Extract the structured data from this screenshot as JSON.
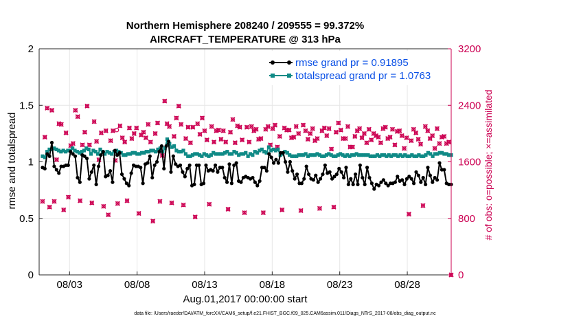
{
  "chart_data": {
    "type": "line",
    "title_line1": "Northern Hemisphere 208240 / 209555 = 99.372%",
    "title_line2": "AIRCRAFT_TEMPERATURE @ 313 hPa",
    "xlabel": "Aug.01,2017 00:00:00 start",
    "ylabel_left": "rmse and totalspread",
    "ylabel_right": "# of obs: o=possible; ×=assimilated",
    "footnote": "data file: /Users/raeder/DAI/ATM_forcXX/CAM6_setup/f.e21.FHIST_BGC.f09_025.CAM6assim.011/Diags_NTrS_2017-08/obs_diag_output.nc",
    "x_tick_labels": [
      "08/03",
      "08/08",
      "08/13",
      "08/18",
      "08/23",
      "08/28"
    ],
    "x_ticks_day": [
      3,
      8,
      13,
      18,
      23,
      28
    ],
    "xlim_day": [
      0.75,
      31.25
    ],
    "ylim_left": [
      0,
      2
    ],
    "yticks_left": [
      "0",
      "0.5",
      "1",
      "1.5",
      "2"
    ],
    "ylim_right": [
      0,
      3200
    ],
    "yticks_right": [
      "0",
      "800",
      "1600",
      "2400",
      "3200"
    ],
    "colors": {
      "rmse": "#000000",
      "spread": "#0f8a86",
      "obs": "#cc0052",
      "legend_text": "#0a50e6",
      "grid": "#e6e6e6"
    },
    "series": [
      {
        "name": "rmse grand pr = 0.91895",
        "color": "#000000",
        "values": [
          0.95,
          0.94,
          1.07,
          1.05,
          1.17,
          0.96,
          0.93,
          0.9,
          0.96,
          0.96,
          0.97,
          0.97,
          1.09,
          1.07,
          1.05,
          0.86,
          0.82,
          1.06,
          1.05,
          1.03,
          0.85,
          0.91,
          0.97,
          0.8,
          0.96,
          1.06,
          1.09,
          0.87,
          0.88,
          0.92,
          0.82,
          1.1,
          1.06,
          1.08,
          0.89,
          0.85,
          0.81,
          0.79,
          0.9,
          0.97,
          0.96,
          0.96,
          0.95,
          0.81,
          0.98,
          0.99,
          1.05,
          0.86,
          0.97,
          1.0,
          1.09,
          1.14,
          0.94,
          1.14,
          1.18,
          0.91,
          1.05,
          0.98,
          0.96,
          0.97,
          0.91,
          0.87,
          0.94,
          0.97,
          0.79,
          0.8,
          0.97,
          0.97,
          0.8,
          0.81,
          0.97,
          0.92,
          0.93,
          0.92,
          0.97,
          0.91,
          0.95,
          0.95,
          0.86,
          0.82,
          0.98,
          0.81,
          0.97,
          0.99,
          0.83,
          0.82,
          0.86,
          0.87,
          0.86,
          0.85,
          0.86,
          0.82,
          0.79,
          0.83,
          0.95,
          0.95,
          0.92,
          1.07,
          1.04,
          0.99,
          1.02,
          0.99,
          1.08,
          1.08,
          1.0,
          0.91,
          1.0,
          0.92,
          0.85,
          0.89,
          0.81,
          0.81,
          0.85,
          0.96,
          0.89,
          0.85,
          0.84,
          0.88,
          0.82,
          0.85,
          0.89,
          0.97,
          0.9,
          0.91,
          0.85,
          0.87,
          0.89,
          0.94,
          0.91,
          0.86,
          0.95,
          0.8,
          0.85,
          0.8,
          0.89,
          0.8,
          0.97,
          0.86,
          0.8,
          0.95,
          0.86,
          0.81,
          0.76,
          0.8,
          0.79,
          0.82,
          0.84,
          0.81,
          0.79,
          0.81,
          0.81,
          0.82,
          0.87,
          0.83,
          0.84,
          0.8,
          0.85,
          0.87,
          0.85,
          0.81,
          0.91,
          0.88,
          0.82,
          0.86,
          0.8,
          0.95,
          0.88,
          0.82,
          0.86,
          0.84,
          0.99,
          0.93,
          0.93,
          0.81,
          0.8,
          0.8
        ]
      },
      {
        "name": "totalspread grand pr = 1.0763",
        "color": "#0f8a86",
        "values": [
          1.05,
          1.04,
          1.09,
          1.11,
          1.11,
          1.12,
          1.11,
          1.1,
          1.09,
          1.1,
          1.09,
          1.1,
          1.1,
          1.12,
          1.1,
          1.09,
          1.08,
          1.09,
          1.1,
          1.12,
          1.11,
          1.07,
          1.1,
          1.09,
          1.07,
          1.11,
          1.09,
          1.07,
          1.09,
          1.08,
          1.07,
          1.09,
          1.1,
          1.09,
          1.08,
          1.06,
          1.06,
          1.07,
          1.07,
          1.08,
          1.08,
          1.07,
          1.07,
          1.08,
          1.08,
          1.09,
          1.09,
          1.1,
          1.1,
          1.09,
          1.11,
          1.12,
          1.09,
          1.12,
          1.2,
          1.16,
          1.13,
          1.14,
          1.1,
          1.09,
          1.09,
          1.1,
          1.07,
          1.05,
          1.05,
          1.06,
          1.07,
          1.07,
          1.06,
          1.05,
          1.07,
          1.06,
          1.05,
          1.06,
          1.08,
          1.07,
          1.07,
          1.07,
          1.07,
          1.08,
          1.09,
          1.07,
          1.07,
          1.09,
          1.08,
          1.06,
          1.07,
          1.07,
          1.08,
          1.05,
          1.07,
          1.06,
          1.09,
          1.08,
          1.1,
          1.11,
          1.09,
          1.08,
          1.13,
          1.1,
          1.11,
          1.1,
          1.11,
          1.06,
          1.07,
          1.09,
          1.08,
          1.06,
          1.05,
          1.05,
          1.05,
          1.06,
          1.06,
          1.06,
          1.07,
          1.05,
          1.06,
          1.06,
          1.06,
          1.07,
          1.06,
          1.05,
          1.05,
          1.06,
          1.07,
          1.06,
          1.05,
          1.05,
          1.06,
          1.07,
          1.06,
          1.05,
          1.06,
          1.05,
          1.06,
          1.06,
          1.07,
          1.06,
          1.06,
          1.06,
          1.06,
          1.06,
          1.05,
          1.05,
          1.05,
          1.06,
          1.05,
          1.06,
          1.06,
          1.05,
          1.06,
          1.05,
          1.06,
          1.06,
          1.05,
          1.06,
          1.05,
          1.06,
          1.05,
          1.05,
          1.06,
          1.05,
          1.05,
          1.06,
          1.05,
          1.05,
          1.06,
          1.08,
          1.07,
          1.05,
          1.07,
          1.07,
          1.08,
          1.08,
          1.07,
          1.07,
          1.06,
          1.06
        ]
      }
    ],
    "obs_count_axis": "right",
    "obs_assimilated": [
      1040,
      1950,
      2360,
      960,
      2330,
      1040,
      1630,
      2140,
      2130,
      920,
      2010,
      1100,
      1830,
      1860,
      2330,
      2240,
      1050,
      1840,
      2020,
      2390,
      1840,
      1020,
      2170,
      1890,
      1630,
      2010,
      970,
      2040,
      850,
      1900,
      2040,
      1620,
      1010,
      2110,
      1940,
      1880,
      1050,
      2080,
      1930,
      2000,
      2080,
      870,
      1980,
      2020,
      1940,
      2130,
      1880,
      760,
      2000,
      2150,
      1040,
      1690,
      2460,
      2140,
      2100,
      1020,
      1960,
      2220,
      2390,
      2130,
      990,
      1930,
      2090,
      1870,
      2090,
      820,
      2140,
      1990,
      2220,
      2040,
      1910,
      1000,
      2100,
      1880,
      2040,
      2050,
      1920,
      2040,
      1880,
      930,
      2020,
      2200,
      1870,
      2110,
      2090,
      1910,
      880,
      2090,
      1880,
      2100,
      2040,
      2060,
      1920,
      1930,
      880,
      2060,
      2100,
      1840,
      2070,
      2120,
      1810,
      1960,
      920,
      2080,
      2050,
      2050,
      1940,
      1950,
      2100,
      2000,
      910,
      2120,
      2040,
      1920,
      2000,
      2070,
      1900,
      1930,
      940,
      2040,
      2080,
      1970,
      2070,
      1780,
      960,
      2020,
      2150,
      2050,
      1930,
      1930,
      2100,
      1810,
      1810,
      1960,
      2040,
      2070,
      1940,
      2000,
      1870,
      2060,
      1910,
      2000,
      1970,
      1950,
      1870,
      2070,
      2090,
      1930,
      1950,
      2060,
      1840,
      2030,
      2040,
      1970,
      1790,
      1940,
      860,
      1900,
      2060,
      2010,
      1920,
      1850,
      980,
      2100,
      2040,
      1930,
      1970,
      1790,
      2070,
      1860,
      1950,
      1960,
      1860,
      1880,
      0
    ],
    "obs_possible_marked_day": 6.5,
    "obs_possible_marked_value": 2050,
    "legend": [
      {
        "label": "rmse grand pr = 0.91895",
        "color": "#000000"
      },
      {
        "label": "totalspread grand pr = 1.0763",
        "color": "#0f8a86"
      }
    ]
  }
}
